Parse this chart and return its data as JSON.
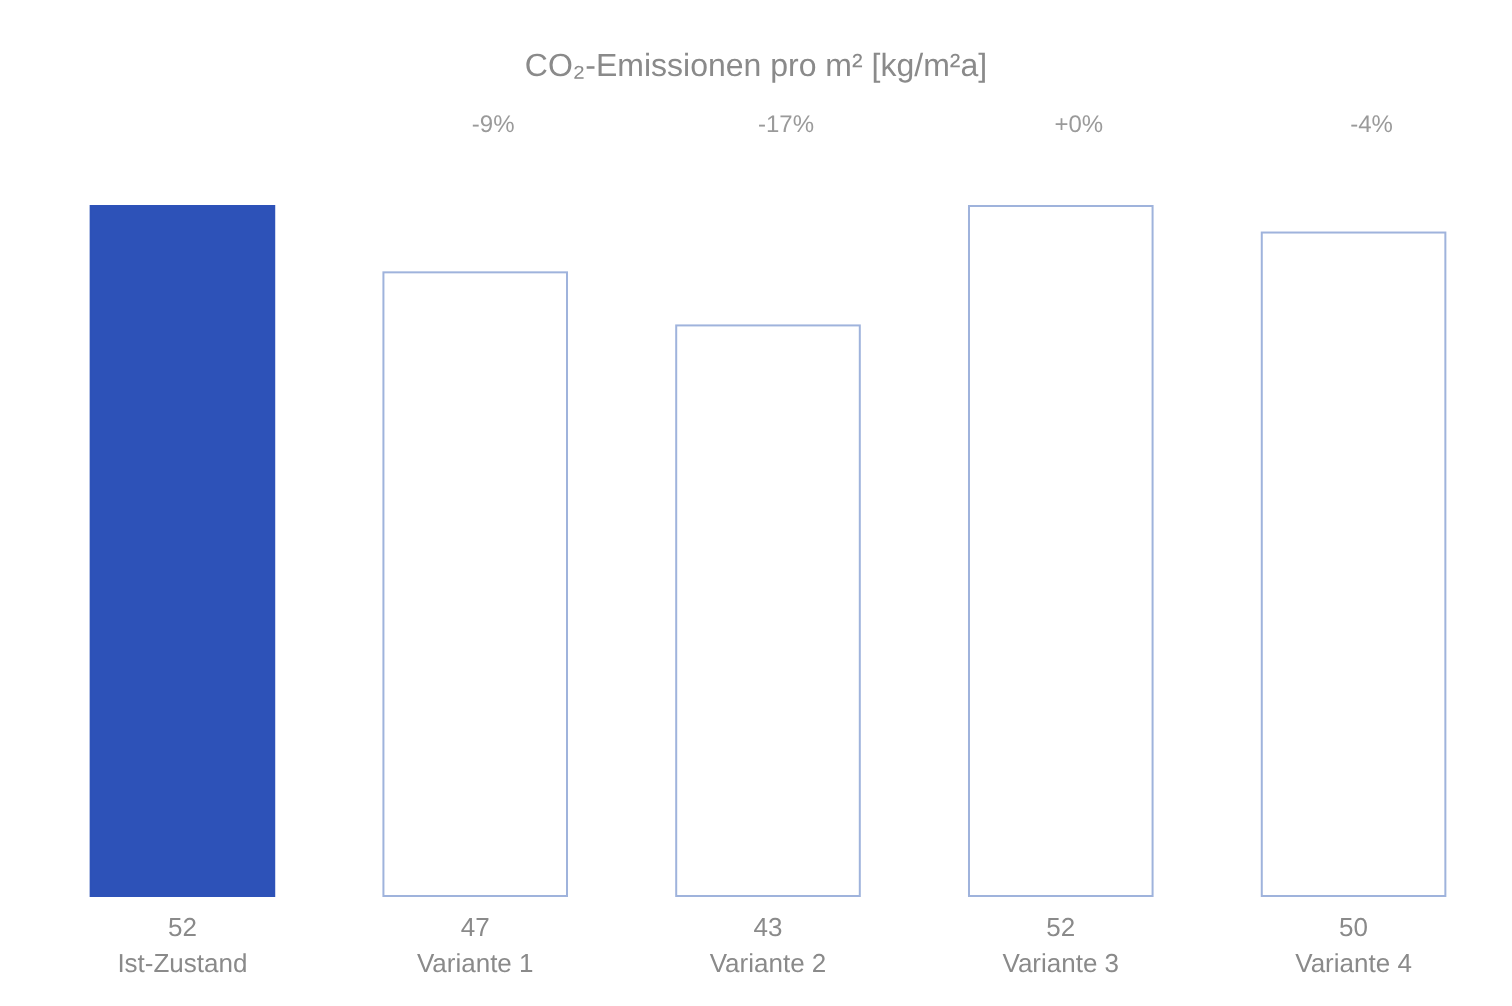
{
  "chart_data": {
    "type": "bar",
    "title": "CO₂-Emissionen pro m² [kg/m²a]",
    "categories": [
      "Ist-Zustand",
      "Variante 1",
      "Variante 2",
      "Variante 3",
      "Variante 4"
    ],
    "values": [
      52,
      47,
      43,
      52,
      50
    ],
    "colors": [
      "#2d52b8",
      "#ffffff",
      "#ffffff",
      "#ffffff",
      "#ffffff"
    ],
    "data_labels": true,
    "annotations": [
      "-9%",
      "-17%",
      "+0%",
      "-4%"
    ]
  }
}
